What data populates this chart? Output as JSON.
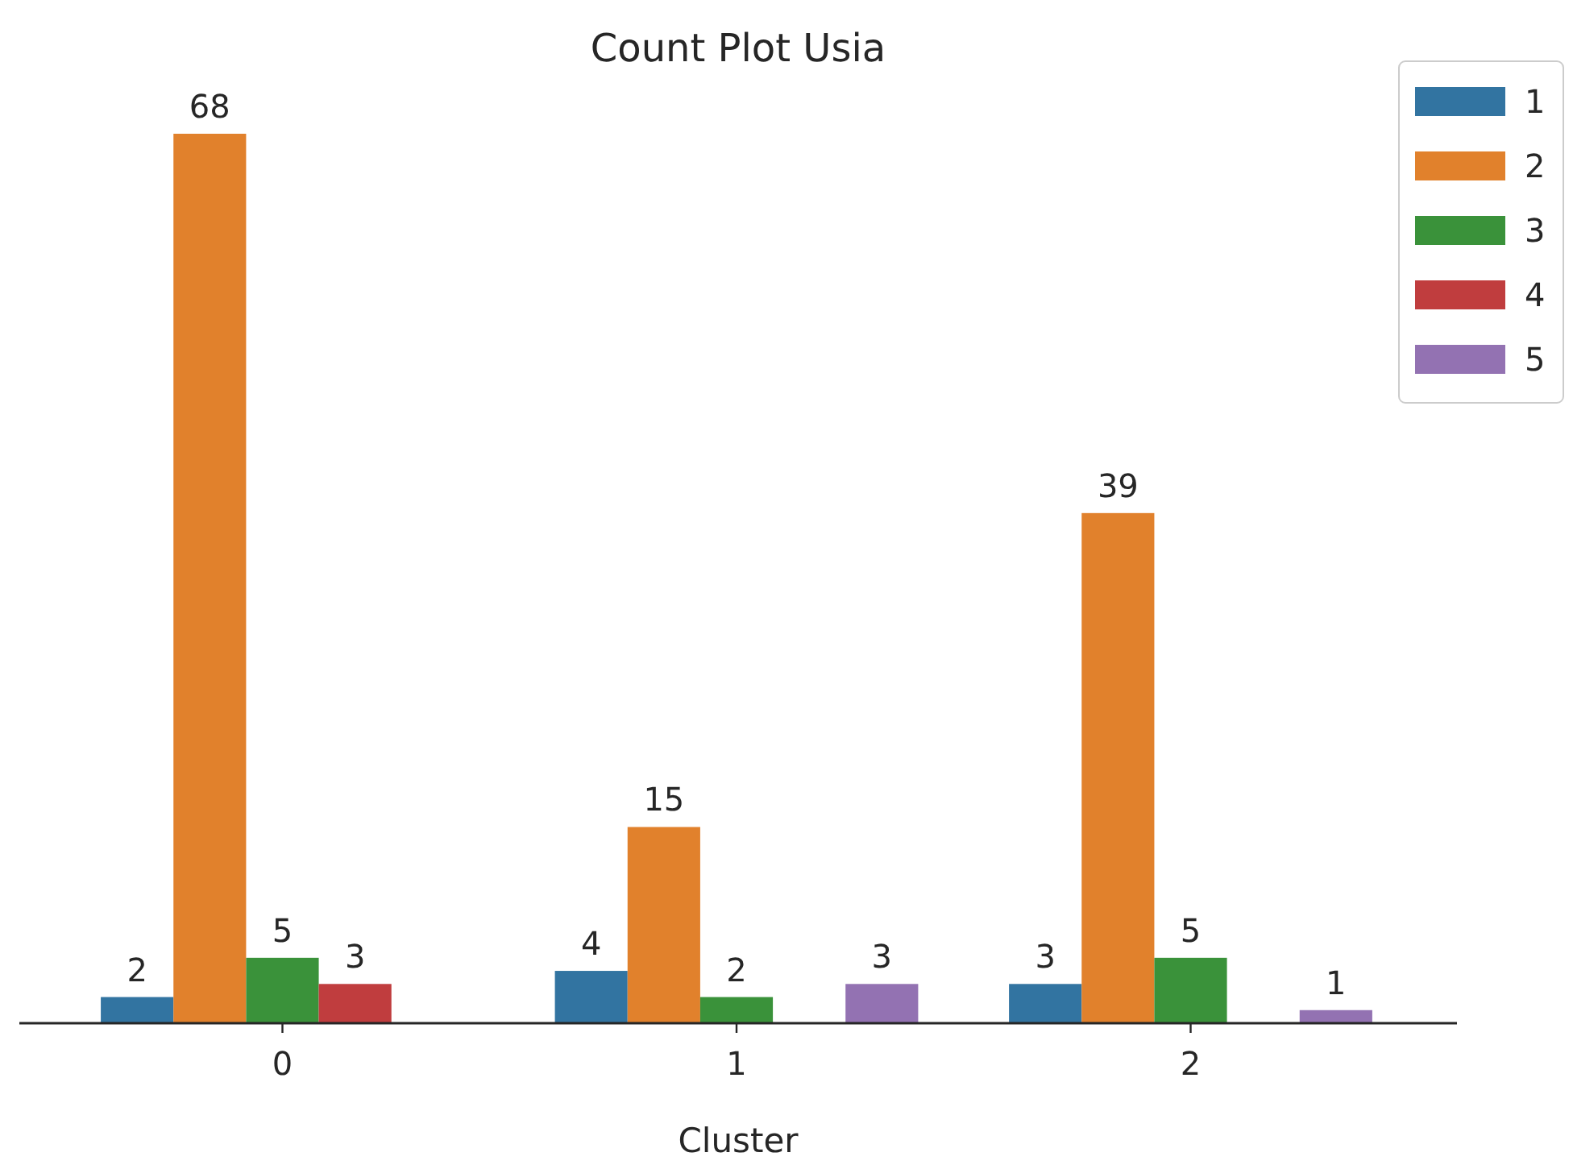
{
  "chart_data": {
    "type": "bar",
    "title": "Count Plot Usia",
    "xlabel": "Cluster",
    "categories": [
      "0",
      "1",
      "2"
    ],
    "series": [
      {
        "name": "1",
        "color": "#3274a1",
        "values": [
          2,
          4,
          3
        ]
      },
      {
        "name": "2",
        "color": "#e1812c",
        "values": [
          68,
          15,
          39
        ]
      },
      {
        "name": "3",
        "color": "#3a923a",
        "values": [
          5,
          2,
          5
        ]
      },
      {
        "name": "4",
        "color": "#c03d3e",
        "values": [
          3,
          null,
          null
        ]
      },
      {
        "name": "5",
        "color": "#9372b2",
        "values": [
          null,
          3,
          1
        ]
      }
    ],
    "data_labels": true,
    "legend": "top right",
    "tick_labels": "x"
  }
}
